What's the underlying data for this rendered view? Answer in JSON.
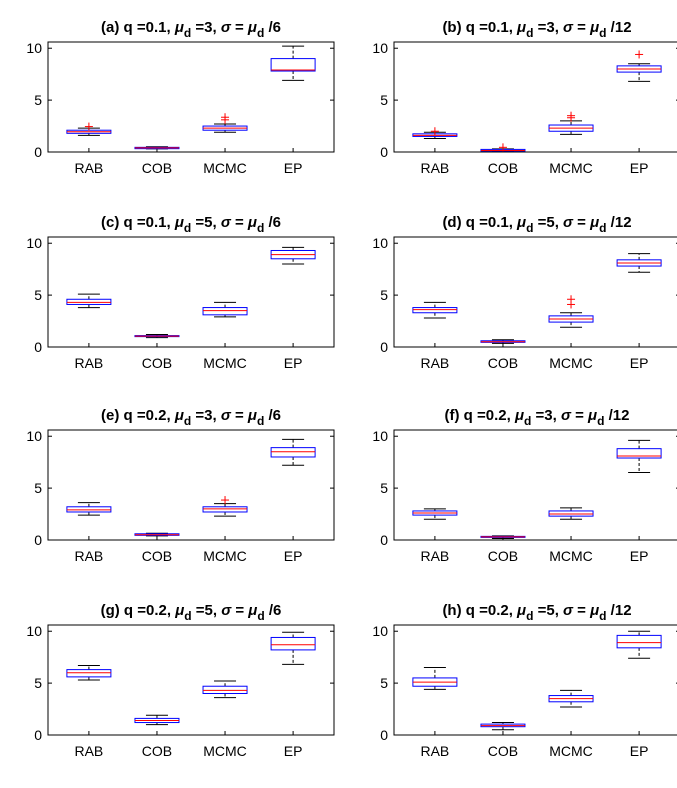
{
  "chart_data": [
    {
      "type": "boxplot",
      "title": "(a) q =0.1, μ_d =3, σ = μ_d /6",
      "title_parts": {
        "prefix": "(a) q =0.1, ",
        "mu": "μ",
        "sub": "d",
        "mid": " =3, ",
        "sigma": "σ",
        "eq": " = ",
        "mu2": "μ",
        "sub2": "d",
        "suffix": " /6"
      },
      "categories": [
        "RAB",
        "COB",
        "MCMC",
        "EP"
      ],
      "ylim": [
        0,
        10.6
      ],
      "yticks": [
        0,
        5,
        10
      ],
      "boxes": [
        {
          "lw": 1.6,
          "q1": 1.8,
          "med": 1.95,
          "q3": 2.1,
          "uw": 2.3,
          "outliers": [
            2.45
          ]
        },
        {
          "lw": 0.3,
          "q1": 0.32,
          "med": 0.4,
          "q3": 0.45,
          "uw": 0.5,
          "outliers": []
        },
        {
          "lw": 1.9,
          "q1": 2.1,
          "med": 2.3,
          "q3": 2.5,
          "uw": 2.7,
          "outliers": [
            3.1,
            3.35
          ]
        },
        {
          "lw": 6.9,
          "q1": 7.8,
          "med": 7.9,
          "q3": 9.0,
          "uw": 10.2,
          "outliers": []
        }
      ]
    },
    {
      "type": "boxplot",
      "title": "(b) q =0.1, μ_d =3, σ = μ_d /12",
      "title_parts": {
        "prefix": "(b) q =0.1, ",
        "mu": "μ",
        "sub": "d",
        "mid": " =3, ",
        "sigma": "σ",
        "eq": " = ",
        "mu2": "μ",
        "sub2": "d",
        "suffix": " /12"
      },
      "categories": [
        "RAB",
        "COB",
        "MCMC",
        "EP"
      ],
      "ylim": [
        0,
        10.6
      ],
      "yticks": [
        0,
        5,
        10
      ],
      "boxes": [
        {
          "lw": 1.3,
          "q1": 1.5,
          "med": 1.6,
          "q3": 1.75,
          "uw": 1.9,
          "outliers": [
            2.0
          ]
        },
        {
          "lw": 0.05,
          "q1": 0.1,
          "med": 0.15,
          "q3": 0.25,
          "uw": 0.3,
          "outliers": [
            0.45
          ]
        },
        {
          "lw": 1.7,
          "q1": 2.0,
          "med": 2.3,
          "q3": 2.6,
          "uw": 3.0,
          "outliers": [
            3.3,
            3.5
          ]
        },
        {
          "lw": 6.8,
          "q1": 7.7,
          "med": 8.0,
          "q3": 8.3,
          "uw": 8.5,
          "outliers": [
            9.4
          ]
        }
      ]
    },
    {
      "type": "boxplot",
      "title": "(c) q =0.1, μ_d =5, σ = μ_d /6",
      "title_parts": {
        "prefix": "(c) q =0.1, ",
        "mu": "μ",
        "sub": "d",
        "mid": " =5, ",
        "sigma": "σ",
        "eq": " = ",
        "mu2": "μ",
        "sub2": "d",
        "suffix": " /6"
      },
      "categories": [
        "RAB",
        "COB",
        "MCMC",
        "EP"
      ],
      "ylim": [
        0,
        10.6
      ],
      "yticks": [
        0,
        5,
        10
      ],
      "boxes": [
        {
          "lw": 3.8,
          "q1": 4.1,
          "med": 4.3,
          "q3": 4.6,
          "uw": 5.1,
          "outliers": []
        },
        {
          "lw": 0.9,
          "q1": 1.0,
          "med": 1.05,
          "q3": 1.1,
          "uw": 1.2,
          "outliers": []
        },
        {
          "lw": 2.9,
          "q1": 3.1,
          "med": 3.5,
          "q3": 3.8,
          "uw": 4.3,
          "outliers": []
        },
        {
          "lw": 8.0,
          "q1": 8.5,
          "med": 8.9,
          "q3": 9.3,
          "uw": 9.6,
          "outliers": []
        }
      ]
    },
    {
      "type": "boxplot",
      "title": "(d) q =0.1, μ_d =5, σ = μ_d /12",
      "title_parts": {
        "prefix": "(d) q =0.1, ",
        "mu": "μ",
        "sub": "d",
        "mid": " =5, ",
        "sigma": "σ",
        "eq": " = ",
        "mu2": "μ",
        "sub2": "d",
        "suffix": " /12"
      },
      "categories": [
        "RAB",
        "COB",
        "MCMC",
        "EP"
      ],
      "ylim": [
        0,
        10.6
      ],
      "yticks": [
        0,
        5,
        10
      ],
      "boxes": [
        {
          "lw": 2.8,
          "q1": 3.3,
          "med": 3.6,
          "q3": 3.8,
          "uw": 4.3,
          "outliers": []
        },
        {
          "lw": 0.35,
          "q1": 0.45,
          "med": 0.5,
          "q3": 0.6,
          "uw": 0.7,
          "outliers": []
        },
        {
          "lw": 1.9,
          "q1": 2.4,
          "med": 2.7,
          "q3": 3.0,
          "uw": 3.3,
          "outliers": [
            4.1,
            4.6
          ]
        },
        {
          "lw": 7.2,
          "q1": 7.8,
          "med": 8.1,
          "q3": 8.4,
          "uw": 9.0,
          "outliers": []
        }
      ]
    },
    {
      "type": "boxplot",
      "title": "(e) q =0.2, μ_d =3, σ = μ_d /6",
      "title_parts": {
        "prefix": "(e) q =0.2, ",
        "mu": "μ",
        "sub": "d",
        "mid": " =3, ",
        "sigma": "σ",
        "eq": " = ",
        "mu2": "μ",
        "sub2": "d",
        "suffix": " /6"
      },
      "categories": [
        "RAB",
        "COB",
        "MCMC",
        "EP"
      ],
      "ylim": [
        0,
        10.6
      ],
      "yticks": [
        0,
        5,
        10
      ],
      "boxes": [
        {
          "lw": 2.4,
          "q1": 2.7,
          "med": 2.9,
          "q3": 3.2,
          "uw": 3.6,
          "outliers": []
        },
        {
          "lw": 0.4,
          "q1": 0.45,
          "med": 0.5,
          "q3": 0.6,
          "uw": 0.65,
          "outliers": []
        },
        {
          "lw": 2.3,
          "q1": 2.7,
          "med": 3.0,
          "q3": 3.2,
          "uw": 3.5,
          "outliers": [
            3.85
          ]
        },
        {
          "lw": 7.2,
          "q1": 8.0,
          "med": 8.5,
          "q3": 8.9,
          "uw": 9.7,
          "outliers": []
        }
      ]
    },
    {
      "type": "boxplot",
      "title": "(f) q =0.2, μ_d =3, σ = μ_d /12",
      "title_parts": {
        "prefix": "(f) q =0.2, ",
        "mu": "μ",
        "sub": "d",
        "mid": " =3, ",
        "sigma": "σ",
        "eq": " = ",
        "mu2": "μ",
        "sub2": "d",
        "suffix": " /12"
      },
      "categories": [
        "RAB",
        "COB",
        "MCMC",
        "EP"
      ],
      "ylim": [
        0,
        10.6
      ],
      "yticks": [
        0,
        5,
        10
      ],
      "boxes": [
        {
          "lw": 2.0,
          "q1": 2.4,
          "med": 2.6,
          "q3": 2.8,
          "uw": 3.0,
          "outliers": []
        },
        {
          "lw": 0.15,
          "q1": 0.25,
          "med": 0.3,
          "q3": 0.35,
          "uw": 0.4,
          "outliers": []
        },
        {
          "lw": 2.0,
          "q1": 2.3,
          "med": 2.5,
          "q3": 2.8,
          "uw": 3.1,
          "outliers": []
        },
        {
          "lw": 6.5,
          "q1": 7.9,
          "med": 8.1,
          "q3": 8.8,
          "uw": 9.6,
          "outliers": []
        }
      ]
    },
    {
      "type": "boxplot",
      "title": "(g) q =0.2, μ_d =5, σ = μ_d /6",
      "title_parts": {
        "prefix": "(g) q =0.2, ",
        "mu": "μ",
        "sub": "d",
        "mid": " =5, ",
        "sigma": "σ",
        "eq": " = ",
        "mu2": "μ",
        "sub2": "d",
        "suffix": " /6"
      },
      "categories": [
        "RAB",
        "COB",
        "MCMC",
        "EP"
      ],
      "ylim": [
        0,
        10.6
      ],
      "yticks": [
        0,
        5,
        10
      ],
      "boxes": [
        {
          "lw": 5.3,
          "q1": 5.6,
          "med": 6.0,
          "q3": 6.3,
          "uw": 6.7,
          "outliers": []
        },
        {
          "lw": 1.0,
          "q1": 1.2,
          "med": 1.4,
          "q3": 1.6,
          "uw": 1.9,
          "outliers": []
        },
        {
          "lw": 3.6,
          "q1": 4.0,
          "med": 4.3,
          "q3": 4.7,
          "uw": 5.2,
          "outliers": []
        },
        {
          "lw": 6.8,
          "q1": 8.2,
          "med": 8.7,
          "q3": 9.4,
          "uw": 9.9,
          "outliers": []
        }
      ]
    },
    {
      "type": "boxplot",
      "title": "(h) q =0.2, μ_d =5, σ = μ_d /12",
      "title_parts": {
        "prefix": "(h) q =0.2, ",
        "mu": "μ",
        "sub": "d",
        "mid": " =5, ",
        "sigma": "σ",
        "eq": " = ",
        "mu2": "μ",
        "sub2": "d",
        "suffix": " /12"
      },
      "categories": [
        "RAB",
        "COB",
        "MCMC",
        "EP"
      ],
      "ylim": [
        0,
        10.6
      ],
      "yticks": [
        0,
        5,
        10
      ],
      "boxes": [
        {
          "lw": 4.4,
          "q1": 4.7,
          "med": 5.1,
          "q3": 5.5,
          "uw": 6.5,
          "outliers": []
        },
        {
          "lw": 0.5,
          "q1": 0.8,
          "med": 0.9,
          "q3": 1.05,
          "uw": 1.2,
          "outliers": []
        },
        {
          "lw": 2.7,
          "q1": 3.2,
          "med": 3.5,
          "q3": 3.8,
          "uw": 4.3,
          "outliers": []
        },
        {
          "lw": 7.4,
          "q1": 8.4,
          "med": 8.9,
          "q3": 9.6,
          "uw": 10.0,
          "outliers": []
        }
      ]
    }
  ],
  "style": {
    "box_color": "#0000ff",
    "median_color": "#ff0000",
    "whisker_color": "#000000",
    "outlier_color": "#ff0000",
    "axis_color": "#000000"
  }
}
